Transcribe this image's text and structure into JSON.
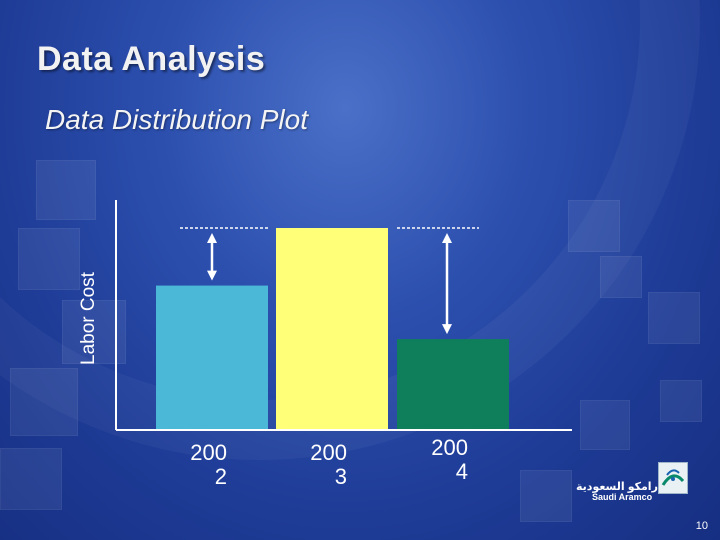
{
  "slide": {
    "title": "Data Analysis",
    "subtitle": "Data Distribution Plot",
    "page_number": "10",
    "logo_arabic": "أرامكو السعودية",
    "logo_english": "Saudi Aramco"
  },
  "colors": {
    "bar_2002": "#4ab8d6",
    "bar_2003": "#ffff78",
    "bar_2004": "#0f7e5a",
    "axis": "#ffffff"
  },
  "chart_data": {
    "type": "bar",
    "ylabel": "Labor Cost",
    "categories": [
      [
        "200",
        "2"
      ],
      [
        "200",
        "3"
      ],
      [
        "200",
        "4"
      ]
    ],
    "values": [
      71.5,
      100,
      45
    ],
    "ylim": [
      0,
      100
    ],
    "grid": false,
    "annotations": [
      {
        "type": "gap-arrow",
        "category_index": 0,
        "from": 71.5,
        "to": 100
      },
      {
        "type": "gap-arrow",
        "category_index": 2,
        "from": 45,
        "to": 100
      }
    ]
  }
}
